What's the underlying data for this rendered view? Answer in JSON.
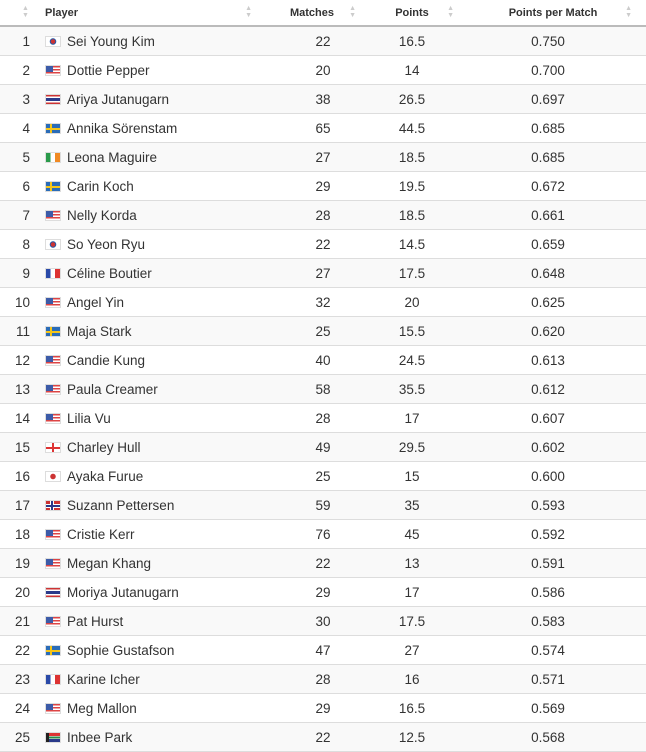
{
  "headers": {
    "player": "Player",
    "matches": "Matches",
    "points": "Points",
    "ppm": "Points per Match"
  },
  "sort_icon": "sort-arrows-icon",
  "rows": [
    {
      "rank": "1",
      "flag": "KR",
      "player": "Sei Young Kim",
      "matches": "22",
      "points": "16.5",
      "ppm": "0.750"
    },
    {
      "rank": "2",
      "flag": "US",
      "player": "Dottie Pepper",
      "matches": "20",
      "points": "14",
      "ppm": "0.700"
    },
    {
      "rank": "3",
      "flag": "TH",
      "player": "Ariya Jutanugarn",
      "matches": "38",
      "points": "26.5",
      "ppm": "0.697"
    },
    {
      "rank": "4",
      "flag": "SE",
      "player": "Annika Sörenstam",
      "matches": "65",
      "points": "44.5",
      "ppm": "0.685"
    },
    {
      "rank": "5",
      "flag": "IE",
      "player": "Leona Maguire",
      "matches": "27",
      "points": "18.5",
      "ppm": "0.685"
    },
    {
      "rank": "6",
      "flag": "SE",
      "player": "Carin Koch",
      "matches": "29",
      "points": "19.5",
      "ppm": "0.672"
    },
    {
      "rank": "7",
      "flag": "US",
      "player": "Nelly Korda",
      "matches": "28",
      "points": "18.5",
      "ppm": "0.661"
    },
    {
      "rank": "8",
      "flag": "KR",
      "player": "So Yeon Ryu",
      "matches": "22",
      "points": "14.5",
      "ppm": "0.659"
    },
    {
      "rank": "9",
      "flag": "FR",
      "player": "Céline Boutier",
      "matches": "27",
      "points": "17.5",
      "ppm": "0.648"
    },
    {
      "rank": "10",
      "flag": "US",
      "player": "Angel Yin",
      "matches": "32",
      "points": "20",
      "ppm": "0.625"
    },
    {
      "rank": "11",
      "flag": "SE",
      "player": "Maja Stark",
      "matches": "25",
      "points": "15.5",
      "ppm": "0.620"
    },
    {
      "rank": "12",
      "flag": "US",
      "player": "Candie Kung",
      "matches": "40",
      "points": "24.5",
      "ppm": "0.613"
    },
    {
      "rank": "13",
      "flag": "US",
      "player": "Paula Creamer",
      "matches": "58",
      "points": "35.5",
      "ppm": "0.612"
    },
    {
      "rank": "14",
      "flag": "US",
      "player": "Lilia Vu",
      "matches": "28",
      "points": "17",
      "ppm": "0.607"
    },
    {
      "rank": "15",
      "flag": "ENG",
      "player": "Charley Hull",
      "matches": "49",
      "points": "29.5",
      "ppm": "0.602"
    },
    {
      "rank": "16",
      "flag": "JP",
      "player": "Ayaka Furue",
      "matches": "25",
      "points": "15",
      "ppm": "0.600"
    },
    {
      "rank": "17",
      "flag": "NO",
      "player": "Suzann Pettersen",
      "matches": "59",
      "points": "35",
      "ppm": "0.593"
    },
    {
      "rank": "18",
      "flag": "US",
      "player": "Cristie Kerr",
      "matches": "76",
      "points": "45",
      "ppm": "0.592"
    },
    {
      "rank": "19",
      "flag": "US",
      "player": "Megan Khang",
      "matches": "22",
      "points": "13",
      "ppm": "0.591"
    },
    {
      "rank": "20",
      "flag": "TH",
      "player": "Moriya Jutanugarn",
      "matches": "29",
      "points": "17",
      "ppm": "0.586"
    },
    {
      "rank": "21",
      "flag": "US",
      "player": "Pat Hurst",
      "matches": "30",
      "points": "17.5",
      "ppm": "0.583"
    },
    {
      "rank": "22",
      "flag": "SE",
      "player": "Sophie Gustafson",
      "matches": "47",
      "points": "27",
      "ppm": "0.574"
    },
    {
      "rank": "23",
      "flag": "FR",
      "player": "Karine Icher",
      "matches": "28",
      "points": "16",
      "ppm": "0.571"
    },
    {
      "rank": "24",
      "flag": "US",
      "player": "Meg Mallon",
      "matches": "29",
      "points": "16.5",
      "ppm": "0.569"
    },
    {
      "rank": "25",
      "flag": "ZA",
      "player": "Inbee Park",
      "matches": "22",
      "points": "12.5",
      "ppm": "0.568"
    }
  ]
}
